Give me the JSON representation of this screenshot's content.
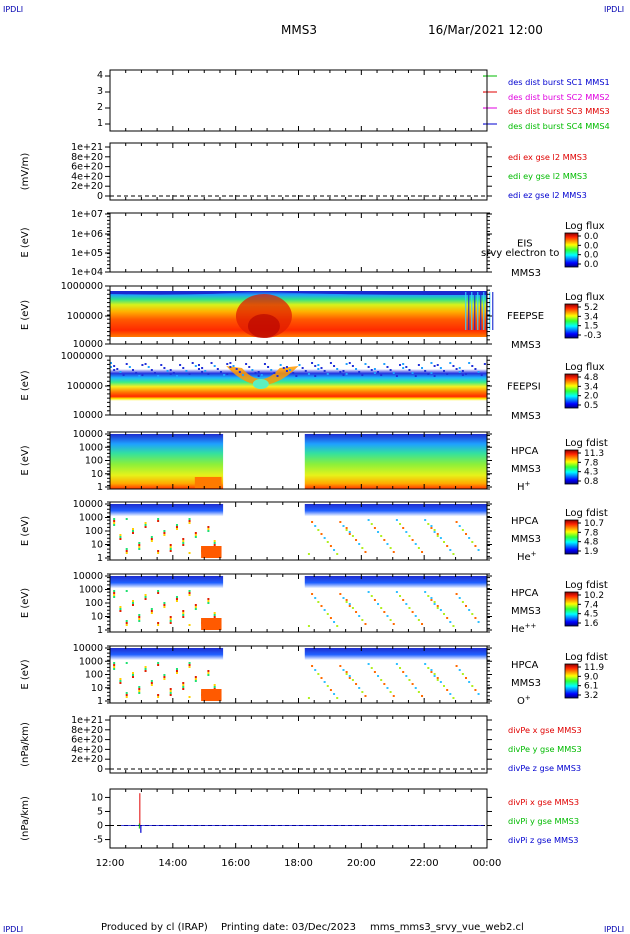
{
  "header": {
    "corner_left_top": "IPDLI",
    "corner_right_top": "IPDLI",
    "corner_left_bottom": "IPDLI",
    "corner_right_bottom": "IPDLI",
    "title": "MMS3",
    "datetime": "16/Mar/2021 12:00"
  },
  "footer": {
    "producer": "Produced by cl (IRAP)",
    "printing": "Printing date: 03/Dec/2023",
    "file": "mms_mms3_srvy_vue_web2.cl"
  },
  "colors": {
    "red": "#e00000",
    "green": "#00bb00",
    "magenta": "#e000e0",
    "blue": "#0000d0"
  },
  "x_axis": {
    "tick_labels": [
      "12:00",
      "14:00",
      "16:00",
      "18:00",
      "20:00",
      "22:00",
      "00:00"
    ],
    "hours": [
      12,
      14,
      16,
      18,
      20,
      22,
      24
    ]
  },
  "chart_data": [
    {
      "type": "line",
      "name": "panel-sc-availability",
      "yticks": [
        "4",
        "3",
        "2",
        "1"
      ],
      "ylim": [
        0.5,
        4.5
      ],
      "legend": [
        {
          "label": "des dist burst SC1 MMS1",
          "color": "#0000d0"
        },
        {
          "label": "des dist burst SC2 MMS2",
          "color": "#e000e0"
        },
        {
          "label": "des dist burst SC3 MMS3",
          "color": "#e00000"
        },
        {
          "label": "des dist burst SC4 MMS4",
          "color": "#00bb00"
        }
      ]
    },
    {
      "type": "line",
      "name": "panel-edi-e",
      "ylabel": "(mV/m)",
      "yticks": [
        "1e+21",
        "8e+20",
        "6e+20",
        "4e+20",
        "2e+20",
        "0"
      ],
      "ylim": [
        0,
        1e+21
      ],
      "legend": [
        {
          "label": "edi ex gse l2 MMS3",
          "color": "#e00000"
        },
        {
          "label": "edi ey gse l2 MMS3",
          "color": "#00bb00"
        },
        {
          "label": "edi ez gse l2 MMS3",
          "color": "#0000d0"
        }
      ]
    },
    {
      "type": "heatmap",
      "name": "panel-eis",
      "ylabel": "E (eV)",
      "yticks": [
        "1e+07",
        "1e+06",
        "1e+05",
        "1e+04"
      ],
      "instrument": "EIS",
      "spacecraft": "MMS3",
      "overlay_text": "srvy electron to",
      "colorbar_title": "Log flux",
      "colorbar_ticks": [
        "0.0",
        "0.0",
        "0.0",
        "0.0"
      ]
    },
    {
      "type": "heatmap",
      "name": "panel-feeps-e",
      "ylabel": "E (eV)",
      "yticks": [
        "1000000",
        "100000",
        "10000"
      ],
      "instrument": "FEEPSE",
      "spacecraft": "MMS3",
      "colorbar_title": "Log flux",
      "colorbar_ticks": [
        "5.2",
        "3.4",
        "1.5",
        "-0.3"
      ]
    },
    {
      "type": "heatmap",
      "name": "panel-feeps-i",
      "ylabel": "E (eV)",
      "yticks": [
        "1000000",
        "100000",
        "10000"
      ],
      "instrument": "FEEPSI",
      "spacecraft": "MMS3",
      "colorbar_title": "Log flux",
      "colorbar_ticks": [
        "4.8",
        "3.4",
        "2.0",
        "0.5"
      ]
    },
    {
      "type": "heatmap",
      "name": "panel-hpca-h",
      "ylabel": "E (eV)",
      "yticks": [
        "10000",
        "1000",
        "100",
        "10",
        "1"
      ],
      "instrument": "HPCA",
      "spacecraft": "MMS3",
      "species": "H",
      "charge": "+",
      "colorbar_title": "Log fdist",
      "colorbar_ticks": [
        "11.3",
        "7.8",
        "4.3",
        "0.8"
      ],
      "data_gap_hours": [
        15.6,
        18.2
      ]
    },
    {
      "type": "heatmap",
      "name": "panel-hpca-he",
      "ylabel": "E (eV)",
      "yticks": [
        "10000",
        "1000",
        "100",
        "10",
        "1"
      ],
      "instrument": "HPCA",
      "spacecraft": "MMS3",
      "species": "He",
      "charge": "+",
      "colorbar_title": "Log fdist",
      "colorbar_ticks": [
        "10.7",
        "7.8",
        "4.8",
        "1.9"
      ],
      "data_gap_hours": [
        15.6,
        18.2
      ]
    },
    {
      "type": "heatmap",
      "name": "panel-hpca-hepp",
      "ylabel": "E (eV)",
      "yticks": [
        "10000",
        "1000",
        "100",
        "10",
        "1"
      ],
      "instrument": "HPCA",
      "spacecraft": "MMS3",
      "species": "He",
      "charge": "++",
      "colorbar_title": "Log fdist",
      "colorbar_ticks": [
        "10.2",
        "7.4",
        "4.5",
        "1.6"
      ],
      "data_gap_hours": [
        15.6,
        18.2
      ]
    },
    {
      "type": "heatmap",
      "name": "panel-hpca-o",
      "ylabel": "E (eV)",
      "yticks": [
        "10000",
        "1000",
        "100",
        "10",
        "1"
      ],
      "instrument": "HPCA",
      "spacecraft": "MMS3",
      "species": "O",
      "charge": "+",
      "colorbar_title": "Log fdist",
      "colorbar_ticks": [
        "11.9",
        "9.0",
        "6.1",
        "3.2"
      ],
      "data_gap_hours": [
        15.6,
        18.2
      ]
    },
    {
      "type": "line",
      "name": "panel-divpe",
      "ylabel": "(nPa/km)",
      "yticks": [
        "1e+21",
        "8e+20",
        "6e+20",
        "4e+20",
        "2e+20",
        "0"
      ],
      "ylim": [
        0,
        1e+21
      ],
      "legend": [
        {
          "label": "divPe x gse MMS3",
          "color": "#e00000"
        },
        {
          "label": "divPe y gse MMS3",
          "color": "#00bb00"
        },
        {
          "label": "divPe z gse MMS3",
          "color": "#0000d0"
        }
      ]
    },
    {
      "type": "line",
      "name": "panel-divpi",
      "ylabel": "(nPa/km)",
      "yticks": [
        "10",
        "5",
        "0",
        "-5"
      ],
      "ylim": [
        -8,
        13
      ],
      "spike": {
        "hour": 12.95,
        "x_max": 11.5,
        "z_min": -2.6
      },
      "legend": [
        {
          "label": "divPi x gse MMS3",
          "color": "#e00000"
        },
        {
          "label": "divPi y gse MMS3",
          "color": "#00bb00"
        },
        {
          "label": "divPi z gse MMS3",
          "color": "#0000d0"
        }
      ]
    }
  ]
}
